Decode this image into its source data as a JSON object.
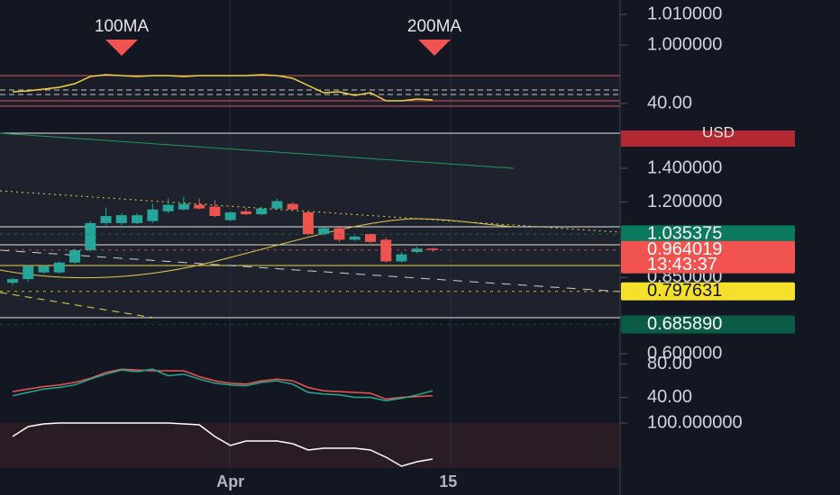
{
  "chart_data": [
    {
      "type": "line",
      "annotations": [
        "100MA",
        "200MA"
      ],
      "series": [
        {
          "color": "#f5d142",
          "values": [
            46.5,
            47,
            48,
            49,
            51,
            55,
            56,
            55.5,
            55,
            55.5,
            55.5,
            55,
            55.5,
            55.5,
            55.5,
            55.5,
            56,
            55.5,
            54,
            50,
            46,
            46.5,
            44.5,
            46,
            41.5,
            41.5,
            42.5,
            42,
            null
          ]
        }
      ],
      "ylim": [
        35,
        62.5
      ],
      "yticks": [
        {
          "value": 40,
          "label": "40.00"
        }
      ],
      "y2lim": [
        0.978,
        1.0147
      ],
      "y2ticks": [
        {
          "value": 1.01,
          "label": "1.010000"
        },
        {
          "value": 1,
          "label": "1.000000"
        }
      ]
    },
    {
      "type": "candlestick",
      "currency": "USD",
      "categories": [
        null,
        null,
        null,
        null,
        null,
        null,
        null,
        null,
        null,
        null,
        null,
        null,
        null,
        null,
        "Apr",
        null,
        null,
        null,
        null,
        null,
        null,
        null,
        null,
        null,
        null,
        null,
        null,
        null,
        "15"
      ],
      "open": [
        0.83,
        0.844,
        0.87,
        0.87,
        0.91,
        0.963,
        1.09,
        1.09,
        1.09,
        1.1,
        1.15,
        1.16,
        1.185,
        1.175,
        1.105,
        1.15,
        1.135,
        1.165,
        1.19,
        1.145,
        1.037,
        1.065,
        1.01,
        1.037,
        1.01,
        0.915,
        0.955,
        0.97,
        null
      ],
      "high": [
        0.85,
        0.9,
        0.9,
        0.915,
        0.97,
        1.1,
        1.17,
        1.14,
        1.14,
        1.19,
        1.22,
        1.23,
        1.22,
        1.21,
        1.15,
        1.17,
        1.175,
        1.22,
        1.2,
        1.15,
        1.07,
        1.07,
        1.03,
        1.04,
        1.02,
        0.955,
        0.98,
        0.975,
        null
      ],
      "low": [
        0.82,
        0.835,
        0.865,
        0.865,
        0.905,
        0.955,
        1.08,
        1.08,
        1.085,
        1.09,
        1.14,
        1.155,
        1.16,
        1.12,
        1.1,
        1.13,
        1.13,
        1.16,
        1.155,
        1.03,
        1.03,
        1.0,
        1.005,
        0.995,
        0.91,
        0.91,
        0.95,
        0.955,
        null
      ],
      "close": [
        0.844,
        0.895,
        0.895,
        0.91,
        0.963,
        1.09,
        1.126,
        1.13,
        1.13,
        1.16,
        1.185,
        1.19,
        1.165,
        1.126,
        1.145,
        1.135,
        1.165,
        1.205,
        1.16,
        1.037,
        1.065,
        1.01,
        1.025,
        1.0,
        0.915,
        0.945,
        0.97,
        0.964,
        null
      ],
      "up_color": "#26a69a",
      "down_color": "#ef5350",
      "log_scale": true,
      "ylim": [
        0.583,
        1.807
      ],
      "yticks": [
        {
          "value": 1.4,
          "label": "1.400000"
        },
        {
          "value": 1.2,
          "label": "1.200000"
        },
        {
          "value": 0.85,
          "label": "0.850000"
        },
        {
          "value": 0.6,
          "label": "0.600000"
        }
      ],
      "price_levels": [
        {
          "value": 1.035375,
          "color": "#0b7a5c"
        },
        {
          "value": 0.964019,
          "color": "#f05350",
          "countdown": "13:43:37"
        },
        {
          "value": 0.797631,
          "color": "#f5e12c"
        },
        {
          "value": 0.68589,
          "label": "0.685890",
          "color": "#0a5c47"
        }
      ]
    },
    {
      "type": "line",
      "series": [
        {
          "color": "#f05350",
          "values": [
            47,
            50,
            53,
            55,
            58,
            63,
            70,
            74,
            73,
            72,
            72,
            72,
            65,
            60,
            57,
            56,
            60,
            62,
            60,
            52,
            48,
            47,
            46,
            45,
            38,
            40,
            41,
            42,
            null
          ]
        },
        {
          "color": "#22ab94",
          "values": [
            42,
            46,
            50,
            52,
            55,
            62,
            68,
            73,
            71,
            74,
            66,
            68,
            62,
            57,
            55,
            54,
            58,
            60,
            56,
            46,
            44,
            43,
            40,
            40,
            36,
            39,
            43,
            48,
            null
          ]
        }
      ],
      "ylim": [
        20,
        85
      ],
      "yticks": [
        {
          "value": 40,
          "label": "40.00"
        },
        {
          "value": 80,
          "label": "80.00"
        }
      ]
    },
    {
      "type": "line",
      "series": [
        {
          "color": "#ffffff",
          "values": [
            70,
            92,
            98,
            100,
            100,
            100,
            100,
            100,
            100,
            100,
            100,
            98,
            96,
            70,
            50,
            60,
            60,
            60,
            54,
            40,
            44,
            44,
            44,
            40,
            24,
            4,
            14,
            20,
            null
          ]
        }
      ],
      "ylim": [
        0,
        110
      ],
      "yticks": [
        {
          "value": 100,
          "label": "100.000000"
        }
      ]
    }
  ]
}
